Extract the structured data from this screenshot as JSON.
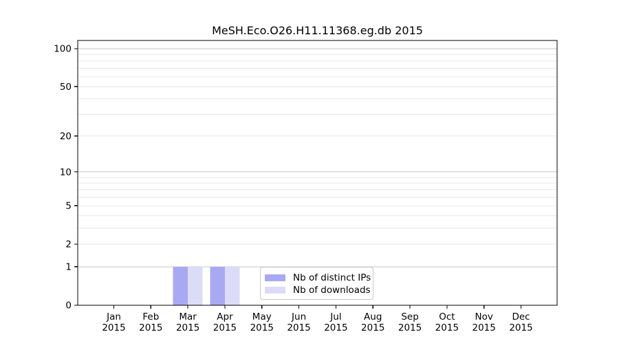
{
  "page": {
    "background": "#ffffff"
  },
  "chart_data": {
    "type": "bar",
    "title": "MeSH.Eco.O26.H11.11368.eg.db 2015",
    "categories": [
      "Jan",
      "Feb",
      "Mar",
      "Apr",
      "May",
      "Jun",
      "Jul",
      "Aug",
      "Sep",
      "Oct",
      "Nov",
      "Dec"
    ],
    "x_tick_year": "2015",
    "series": [
      {
        "name": "Nb of distinct IPs",
        "color": "#a9a9f3",
        "values": [
          0,
          0,
          1,
          1,
          0,
          0,
          0,
          0,
          0,
          0,
          0,
          0
        ]
      },
      {
        "name": "Nb of downloads",
        "color": "#dcdcf9",
        "values": [
          0,
          0,
          1,
          1,
          0,
          0,
          0,
          0,
          0,
          0,
          0,
          0
        ]
      }
    ],
    "yscale": "log1p",
    "ylim": [
      0,
      116
    ],
    "yticks": [
      0,
      1,
      2,
      5,
      10,
      20,
      50,
      100
    ],
    "major_gridlines": [
      1,
      10,
      100
    ],
    "minor_gridlines": [
      2,
      3,
      4,
      5,
      6,
      7,
      8,
      9,
      20,
      30,
      40,
      50,
      60,
      70,
      80,
      90
    ],
    "grid": true,
    "legend": {
      "position": "lower-center-inside",
      "labels": [
        "Nb of distinct IPs",
        "Nb of downloads"
      ]
    },
    "colors": {
      "axis": "#000000",
      "text": "#000000",
      "major_grid": "#c6c6c6",
      "minor_grid": "#e7e7e7",
      "legend_border": "#c8c8c8",
      "background": "#ffffff"
    }
  }
}
